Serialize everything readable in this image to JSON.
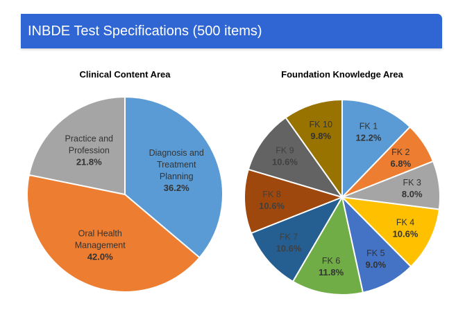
{
  "banner": {
    "title": "INBDE Test Specifications (500 items)",
    "color": "#2f66d3"
  },
  "chart_data": [
    {
      "type": "pie",
      "title": "Clinical Content Area",
      "start_angle_deg": 0,
      "slices": [
        {
          "label": [
            "Diagnosis and",
            "Treatment",
            "Planning"
          ],
          "value_label": "36.2%",
          "value": 36.2,
          "color": "#5b9bd5",
          "text_color": "#333333"
        },
        {
          "label": [
            "Oral Health",
            "Management"
          ],
          "value_label": "42.0%",
          "value": 42.0,
          "color": "#ed7d31",
          "text_color": "#333333"
        },
        {
          "label": [
            "Practice and",
            "Profession"
          ],
          "value_label": "21.8%",
          "value": 21.8,
          "color": "#a5a5a5",
          "text_color": "#333333"
        }
      ]
    },
    {
      "type": "pie",
      "title": "Foundation Knowledge Area",
      "start_angle_deg": 0,
      "slices": [
        {
          "label": [
            "FK 1"
          ],
          "value_label": "12.2%",
          "value": 12.2,
          "color": "#5b9bd5",
          "text_color": "#333333"
        },
        {
          "label": [
            "FK 2"
          ],
          "value_label": "6.8%",
          "value": 6.8,
          "color": "#ed7d31",
          "text_color": "#333333"
        },
        {
          "label": [
            "FK 3"
          ],
          "value_label": "8.0%",
          "value": 8.0,
          "color": "#a5a5a5",
          "text_color": "#333333"
        },
        {
          "label": [
            "FK 4"
          ],
          "value_label": "10.6%",
          "value": 10.6,
          "color": "#ffc000",
          "text_color": "#333333"
        },
        {
          "label": [
            "FK 5"
          ],
          "value_label": "9.0%",
          "value": 9.0,
          "color": "#4472c4",
          "text_color": "#333333"
        },
        {
          "label": [
            "FK 6"
          ],
          "value_label": "11.8%",
          "value": 11.8,
          "color": "#70ad47",
          "text_color": "#333333"
        },
        {
          "label": [
            "FK 7"
          ],
          "value_label": "10.6%",
          "value": 10.6,
          "color": "#255e91",
          "text_color": "#404040"
        },
        {
          "label": [
            "FK 8"
          ],
          "value_label": "10.6%",
          "value": 10.6,
          "color": "#9e480e",
          "text_color": "#404040"
        },
        {
          "label": [
            "FK 9"
          ],
          "value_label": "10.6%",
          "value": 10.6,
          "color": "#636363",
          "text_color": "#404040"
        },
        {
          "label": [
            "FK 10"
          ],
          "value_label": "9.8%",
          "value": 9.8,
          "color": "#997300",
          "text_color": "#333333"
        }
      ]
    }
  ]
}
